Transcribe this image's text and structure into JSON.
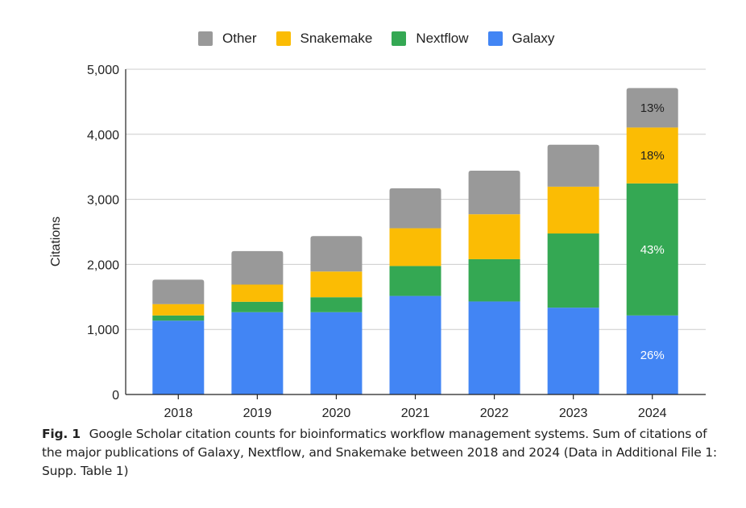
{
  "chart_data": {
    "type": "bar",
    "stacked": true,
    "title": "",
    "xlabel": "",
    "ylabel": "Citations",
    "ylim": [
      0,
      5000
    ],
    "yticks": [
      0,
      1000,
      2000,
      3000,
      4000,
      5000
    ],
    "ytick_labels": [
      "0",
      "1,000",
      "2,000",
      "3,000",
      "4,000",
      "5,000"
    ],
    "grid": true,
    "legend_position": "top",
    "categories": [
      "2018",
      "2019",
      "2020",
      "2021",
      "2022",
      "2023",
      "2024"
    ],
    "series": [
      {
        "name": "Galaxy",
        "color": "#4285f4",
        "values": [
          1135,
          1265,
          1265,
          1515,
          1430,
          1335,
          1215
        ]
      },
      {
        "name": "Nextflow",
        "color": "#34a853",
        "values": [
          80,
          160,
          230,
          460,
          650,
          1140,
          2030
        ]
      },
      {
        "name": "Snakemake",
        "color": "#fbbc04",
        "values": [
          175,
          265,
          395,
          580,
          690,
          720,
          860
        ]
      },
      {
        "name": "Other",
        "color": "#999999",
        "values": [
          375,
          515,
          545,
          615,
          670,
          645,
          605
        ]
      }
    ],
    "legend_order": [
      "Other",
      "Snakemake",
      "Nextflow",
      "Galaxy"
    ],
    "annotations": [
      {
        "category": "2024",
        "series": "Other",
        "text": "13%",
        "color": "#222222"
      },
      {
        "category": "2024",
        "series": "Snakemake",
        "text": "18%",
        "color": "#222222"
      },
      {
        "category": "2024",
        "series": "Nextflow",
        "text": "43%",
        "color": "#ffffff"
      },
      {
        "category": "2024",
        "series": "Galaxy",
        "text": "26%",
        "color": "#ffffff"
      }
    ]
  },
  "legend": {
    "items": [
      {
        "label": "Other",
        "color": "#999999"
      },
      {
        "label": "Snakemake",
        "color": "#fbbc04"
      },
      {
        "label": "Nextflow",
        "color": "#34a853"
      },
      {
        "label": "Galaxy",
        "color": "#4285f4"
      }
    ]
  },
  "caption": {
    "fig_label": "Fig. 1",
    "text": "Google Scholar citation counts for bioinformatics workflow management systems. Sum of citations of the major publications of Galaxy, Nextflow, and Snakemake between 2018 and 2024 (Data in Additional File 1: Supp. Table 1)"
  }
}
